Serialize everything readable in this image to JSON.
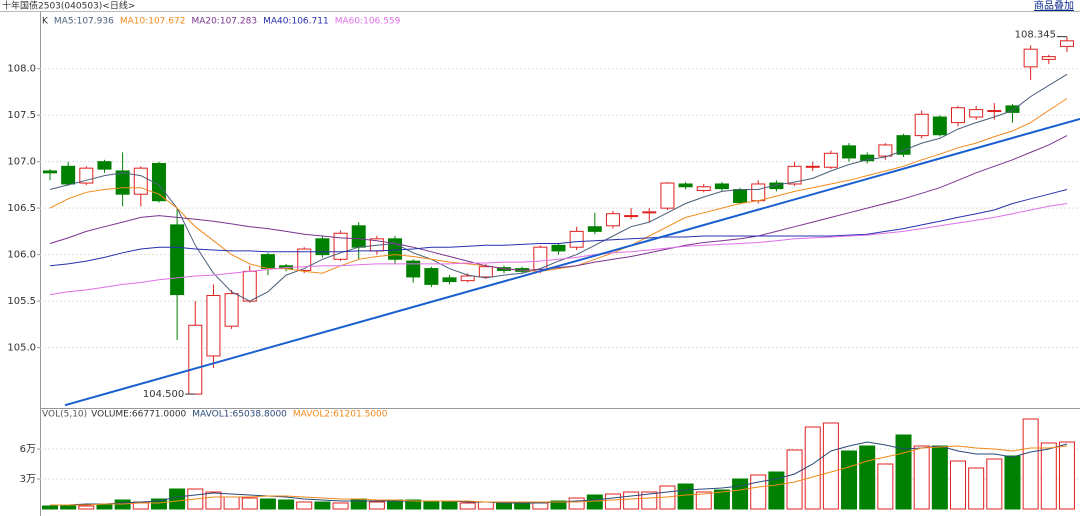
{
  "chart_data": [
    {
      "type": "candlestick",
      "title": "十年国债2503(040503)<日线>",
      "overlay_button": "商品叠加",
      "legend_prefix": "K",
      "up_color": "#e02020",
      "down_color": "#008000",
      "ylim": [
        104.35,
        108.61
      ],
      "yticks": [
        {
          "value": 105,
          "label": "105.0"
        },
        105.5,
        {
          "value": 106,
          "label": "106.0"
        },
        106.5,
        {
          "value": 107,
          "label": "107.0"
        },
        107.5,
        {
          "value": 108,
          "label": "108.0"
        }
      ],
      "grid": true,
      "open": [
        106.9,
        106.95,
        106.77,
        107.0,
        106.9,
        106.65,
        106.98,
        106.32,
        104.5,
        104.91,
        105.23,
        105.5,
        106.0,
        105.88,
        105.83,
        106.17,
        105.95,
        106.31,
        106.04,
        106.17,
        105.93,
        105.85,
        105.75,
        105.72,
        105.76,
        105.86,
        105.85,
        105.84,
        106.1,
        106.08,
        106.3,
        106.31,
        106.42,
        106.46,
        106.5,
        106.76,
        106.69,
        106.76,
        106.7,
        106.58,
        106.77,
        106.76,
        106.95,
        106.94,
        107.17,
        107.07,
        107.06,
        107.28,
        107.28,
        107.48,
        107.42,
        107.48,
        107.55,
        107.6,
        108.02,
        108.1,
        108.24
      ],
      "high": [
        106.92,
        107.0,
        106.95,
        107.02,
        107.1,
        106.95,
        107.0,
        106.5,
        105.5,
        105.68,
        105.62,
        105.88,
        106.02,
        105.9,
        106.08,
        106.2,
        106.26,
        106.35,
        106.2,
        106.2,
        105.95,
        105.87,
        105.78,
        105.8,
        105.9,
        105.88,
        105.87,
        106.1,
        106.12,
        106.3,
        106.45,
        106.47,
        106.5,
        106.5,
        106.78,
        106.78,
        106.76,
        106.78,
        106.72,
        106.8,
        106.8,
        107.0,
        107.0,
        107.12,
        107.2,
        107.1,
        107.2,
        107.3,
        107.55,
        107.5,
        107.6,
        107.6,
        107.63,
        107.62,
        108.25,
        108.15,
        108.345
      ],
      "low": [
        106.8,
        106.74,
        106.75,
        106.88,
        106.52,
        106.52,
        106.56,
        105.08,
        104.5,
        104.78,
        105.2,
        105.48,
        105.78,
        105.82,
        105.8,
        105.97,
        105.93,
        105.95,
        106.0,
        105.9,
        105.7,
        105.65,
        105.68,
        105.7,
        105.74,
        105.8,
        105.8,
        105.8,
        106.0,
        106.05,
        106.22,
        106.28,
        106.38,
        106.35,
        106.48,
        106.7,
        106.67,
        106.68,
        106.54,
        106.55,
        106.68,
        106.74,
        106.9,
        106.92,
        107.0,
        106.98,
        107.02,
        107.05,
        107.25,
        107.27,
        107.38,
        107.45,
        107.45,
        107.42,
        107.88,
        108.05,
        108.18
      ],
      "close": [
        106.88,
        106.76,
        106.93,
        106.92,
        106.65,
        106.93,
        106.58,
        105.57,
        105.24,
        105.56,
        105.58,
        105.82,
        105.85,
        105.85,
        106.06,
        106.0,
        106.23,
        106.08,
        106.17,
        105.95,
        105.76,
        105.68,
        105.71,
        105.77,
        105.87,
        105.83,
        105.82,
        106.08,
        106.04,
        106.25,
        106.25,
        106.44,
        106.42,
        106.46,
        106.77,
        106.73,
        106.73,
        106.71,
        106.56,
        106.76,
        106.71,
        106.95,
        106.95,
        107.09,
        107.04,
        107.01,
        107.18,
        107.08,
        107.51,
        107.29,
        107.58,
        107.56,
        107.55,
        107.53,
        108.21,
        108.13,
        108.3
      ],
      "series": [
        {
          "name": "MA5",
          "legend": "MA5:107.936",
          "color": "#4a5f7a",
          "values": [
            106.7,
            106.75,
            106.8,
            106.85,
            106.88,
            106.85,
            106.75,
            106.5,
            106.1,
            105.8,
            105.6,
            105.5,
            105.6,
            105.78,
            105.85,
            105.95,
            106.02,
            106.08,
            106.1,
            106.12,
            106.02,
            105.95,
            105.85,
            105.78,
            105.75,
            105.78,
            105.8,
            105.85,
            105.93,
            106.0,
            106.1,
            106.2,
            106.3,
            106.35,
            106.45,
            106.55,
            106.62,
            106.68,
            106.7,
            106.7,
            106.75,
            106.78,
            106.82,
            106.9,
            106.97,
            107.02,
            107.05,
            107.12,
            107.2,
            107.25,
            107.35,
            107.42,
            107.48,
            107.55,
            107.7,
            107.82,
            107.94
          ]
        },
        {
          "name": "MA10",
          "legend": "MA10:107.672",
          "color": "#f08a1c",
          "values": [
            106.5,
            106.6,
            106.67,
            106.7,
            106.72,
            106.72,
            106.65,
            106.5,
            106.3,
            106.15,
            106.0,
            105.9,
            105.85,
            105.85,
            105.82,
            105.8,
            105.88,
            105.95,
            105.98,
            106.0,
            105.98,
            105.95,
            105.92,
            105.9,
            105.88,
            105.85,
            105.83,
            105.82,
            105.85,
            105.88,
            105.95,
            106.02,
            106.1,
            106.2,
            106.3,
            106.4,
            106.45,
            106.5,
            106.55,
            106.58,
            106.63,
            106.68,
            106.72,
            106.76,
            106.8,
            106.85,
            106.9,
            106.95,
            107.02,
            107.08,
            107.15,
            107.2,
            107.27,
            107.33,
            107.42,
            107.55,
            107.68
          ]
        },
        {
          "name": "MA20",
          "legend": "MA20:107.283",
          "color": "#7a3590",
          "values": [
            106.12,
            106.18,
            106.25,
            106.3,
            106.35,
            106.4,
            106.42,
            106.4,
            106.38,
            106.36,
            106.33,
            106.3,
            106.28,
            106.25,
            106.22,
            106.2,
            106.18,
            106.17,
            106.15,
            106.12,
            106.08,
            106.03,
            105.98,
            105.93,
            105.88,
            105.85,
            105.83,
            105.84,
            105.86,
            105.88,
            105.92,
            105.95,
            105.98,
            106.02,
            106.06,
            106.1,
            106.13,
            106.15,
            106.17,
            106.2,
            106.25,
            106.3,
            106.35,
            106.4,
            106.45,
            106.5,
            106.55,
            106.6,
            106.66,
            106.72,
            106.8,
            106.88,
            106.95,
            107.02,
            107.1,
            107.18,
            107.28
          ]
        },
        {
          "name": "MA40",
          "legend": "MA40:106.711",
          "color": "#2830b0",
          "values": [
            105.88,
            105.9,
            105.93,
            105.97,
            106.02,
            106.06,
            106.08,
            106.08,
            106.06,
            106.05,
            106.04,
            106.04,
            106.03,
            106.03,
            106.03,
            106.03,
            106.03,
            106.04,
            106.04,
            106.05,
            106.06,
            106.08,
            106.08,
            106.09,
            106.1,
            106.1,
            106.11,
            106.12,
            106.12,
            106.14,
            106.15,
            106.16,
            106.17,
            106.18,
            106.19,
            106.19,
            106.2,
            106.2,
            106.2,
            106.2,
            106.2,
            106.2,
            106.2,
            106.2,
            106.21,
            106.22,
            106.25,
            106.28,
            106.32,
            106.36,
            106.4,
            106.44,
            106.48,
            106.55,
            106.6,
            106.65,
            106.7
          ]
        },
        {
          "name": "MA60",
          "legend": "MA60:106.559",
          "color": "#e070e8",
          "values": [
            105.57,
            105.6,
            105.62,
            105.65,
            105.68,
            105.7,
            105.73,
            105.75,
            105.77,
            105.78,
            105.8,
            105.82,
            105.84,
            105.86,
            105.87,
            105.88,
            105.88,
            105.89,
            105.9,
            105.9,
            105.9,
            105.9,
            105.9,
            105.91,
            105.91,
            105.92,
            105.92,
            105.93,
            105.95,
            105.97,
            106.0,
            106.02,
            106.03,
            106.05,
            106.07,
            106.09,
            106.1,
            106.11,
            106.12,
            106.13,
            106.15,
            106.17,
            106.18,
            106.19,
            106.2,
            106.21,
            106.23,
            106.25,
            106.28,
            106.31,
            106.34,
            106.37,
            106.4,
            106.44,
            106.48,
            106.52,
            106.55
          ]
        }
      ],
      "trend_line": {
        "color": "#1a5fd0",
        "values": [
          104.38,
          107.46
        ]
      },
      "annotations": [
        {
          "text": "104.500",
          "value": 104.5
        },
        {
          "text": "108.345",
          "value": 108.345
        }
      ]
    },
    {
      "type": "bar",
      "legend_prefix": "VOL(5,10)",
      "volume_label": "VOLUME:66771.0000",
      "ylim": [
        0,
        99000
      ],
      "yticks": [
        {
          "value": 30000,
          "label": "3万"
        },
        {
          "value": 60000,
          "label": "6万"
        }
      ],
      "values": [
        3000,
        4000,
        3000,
        4000,
        9000,
        7000,
        10000,
        20000,
        20000,
        17000,
        12000,
        11000,
        10000,
        9000,
        7000,
        7000,
        6000,
        10000,
        7000,
        9000,
        9000,
        8000,
        7000,
        6000,
        7000,
        6000,
        6000,
        6000,
        8000,
        11000,
        14000,
        15000,
        17000,
        17000,
        23000,
        25000,
        17000,
        19000,
        30000,
        34000,
        37000,
        59000,
        82000,
        86000,
        58000,
        63000,
        45000,
        74000,
        63000,
        63000,
        48000,
        41000,
        50000,
        53000,
        90000,
        66000,
        67000
      ],
      "series": [
        {
          "name": "MAVOL1",
          "legend": "MAVOL1:65038.8000",
          "color": "#2a4a7a",
          "values": [
            4000,
            4000,
            5000,
            5000,
            6000,
            7000,
            8000,
            12000,
            14000,
            16000,
            15000,
            14000,
            13000,
            12000,
            10000,
            9000,
            8000,
            8000,
            8000,
            8000,
            8000,
            8000,
            8000,
            7000,
            7000,
            6000,
            6000,
            6000,
            7000,
            8000,
            9000,
            11000,
            13000,
            15000,
            17000,
            19000,
            20000,
            21000,
            23000,
            27000,
            30000,
            35000,
            45000,
            58000,
            63000,
            67000,
            64000,
            60000,
            61000,
            63000,
            58000,
            55000,
            55000,
            52000,
            57000,
            60000,
            65000
          ]
        },
        {
          "name": "MAVOL2",
          "legend": "MAVOL2:61201.5000",
          "color": "#f08a1c",
          "values": [
            4000,
            4000,
            4000,
            5000,
            5000,
            6000,
            6000,
            8000,
            10000,
            12000,
            12000,
            12000,
            13000,
            13000,
            12000,
            11000,
            10000,
            10000,
            9000,
            9000,
            8000,
            8000,
            8000,
            8000,
            7000,
            7000,
            7000,
            7000,
            7000,
            7000,
            8000,
            9000,
            10000,
            11000,
            12000,
            14000,
            15000,
            17000,
            19000,
            22000,
            24000,
            27000,
            32000,
            37000,
            42000,
            48000,
            52000,
            56000,
            61000,
            62000,
            63000,
            61000,
            60000,
            58000,
            61000,
            61000,
            63000
          ]
        }
      ]
    }
  ]
}
